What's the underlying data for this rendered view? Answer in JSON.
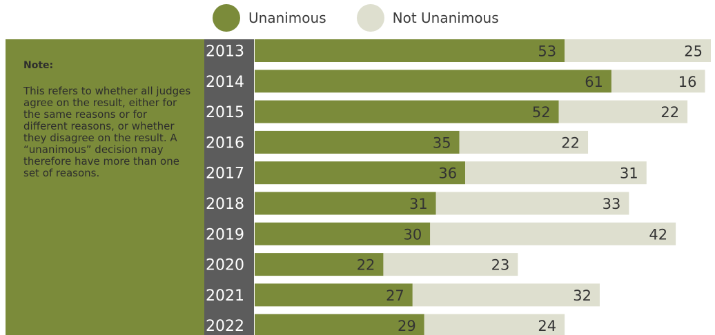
{
  "legend": [
    {
      "label": "Unanimous",
      "color": "#7b8b3a"
    },
    {
      "label": "Not Unanimous",
      "color": "#dedfcf"
    }
  ],
  "note": {
    "title": "Note:",
    "text": "This refers to whether all judges agree on the result, either for the same reasons or for different reasons, or whether they disagree on the result. A “unanimous” decision may therefore have more than one set of reasons."
  },
  "chart_data": {
    "type": "bar",
    "orientation": "horizontal",
    "stacked": true,
    "categories": [
      "2013",
      "2014",
      "2015",
      "2016",
      "2017",
      "2018",
      "2019",
      "2020",
      "2021",
      "2022"
    ],
    "series": [
      {
        "name": "Unanimous",
        "color": "#7b8b3a",
        "values": [
          53,
          61,
          52,
          35,
          36,
          31,
          30,
          22,
          27,
          29
        ]
      },
      {
        "name": "Not Unanimous",
        "color": "#dedfcf",
        "values": [
          25,
          16,
          22,
          22,
          31,
          33,
          42,
          23,
          32,
          24
        ]
      }
    ],
    "title": "",
    "xlabel": "",
    "ylabel": "",
    "xlim": [
      0,
      78
    ],
    "grid": false,
    "legend_position": "top-center"
  }
}
